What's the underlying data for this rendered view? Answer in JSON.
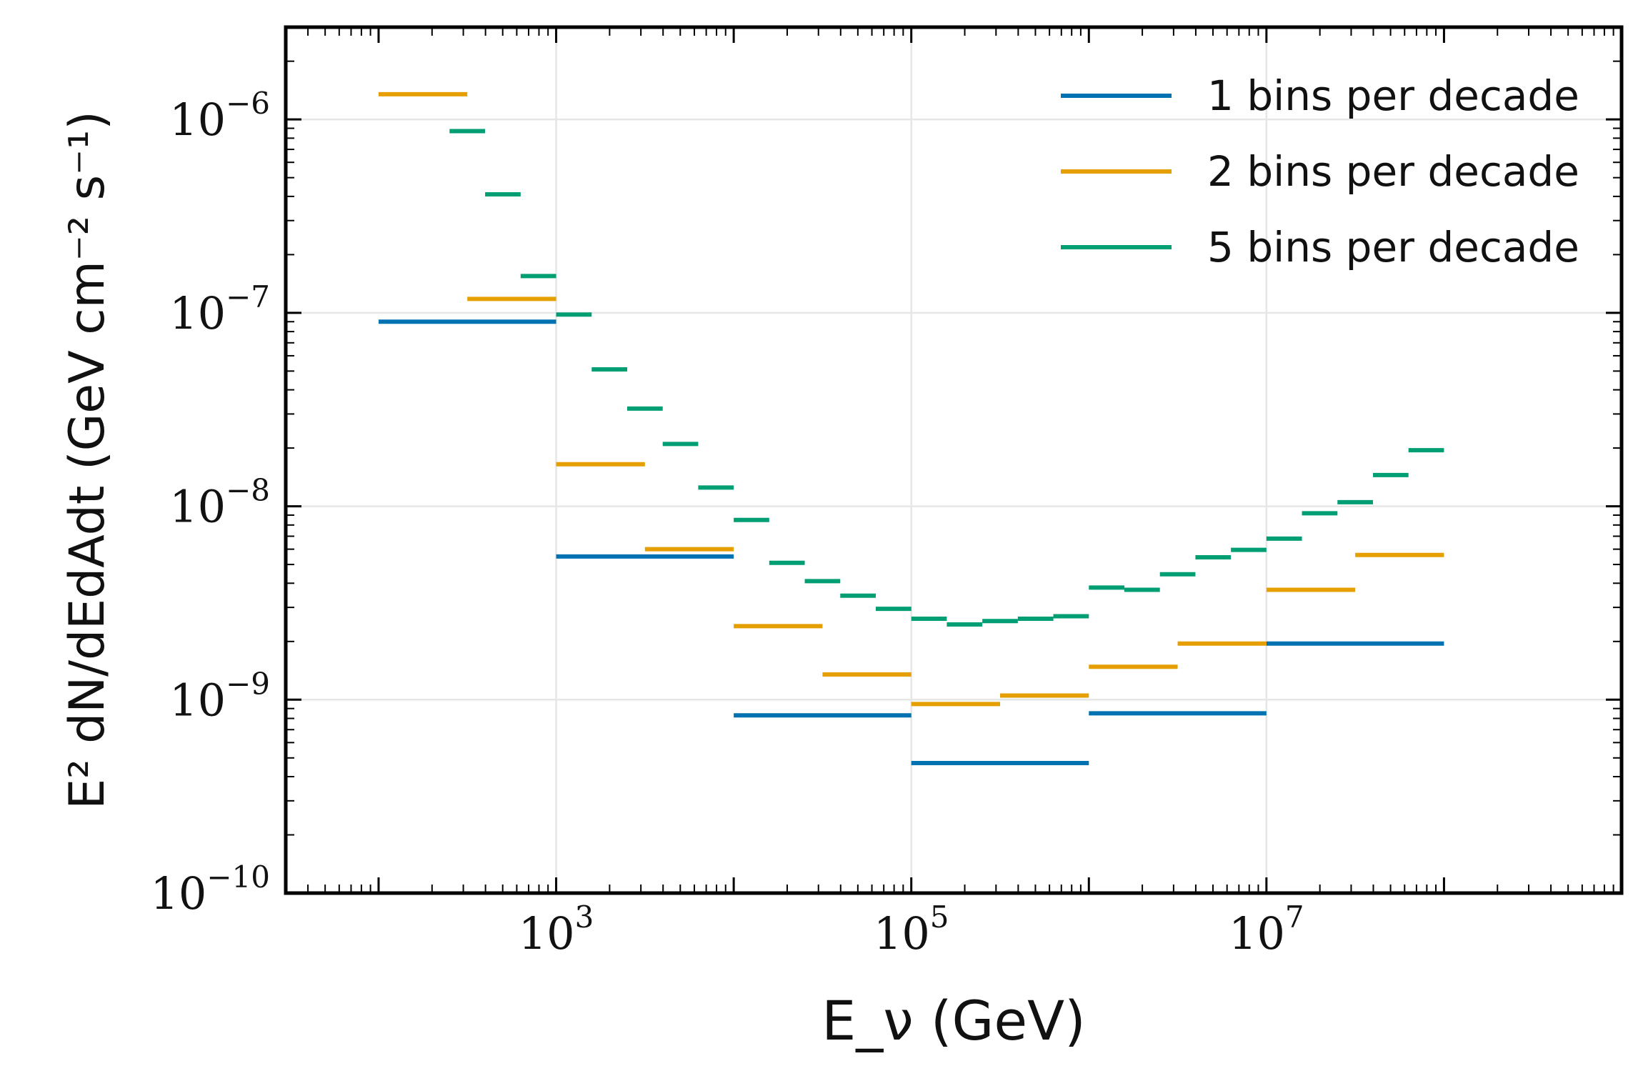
{
  "chart_data": {
    "type": "line",
    "title": "",
    "xlabel": "E_ν (GeV)",
    "ylabel": "E² dN/dEdAdt (GeV cm⁻² s⁻¹)",
    "x_scale": "log",
    "y_scale": "log",
    "xlim": [
      30,
      1000000000.0
    ],
    "ylim": [
      1e-10,
      3e-06
    ],
    "x_ticks": [
      {
        "base": "10",
        "exp": "3",
        "value": 1000
      },
      {
        "base": "10",
        "exp": "5",
        "value": 100000
      },
      {
        "base": "10",
        "exp": "7",
        "value": 10000000
      }
    ],
    "y_ticks": [
      {
        "base": "10",
        "exp": "−6",
        "value": 1e-06
      },
      {
        "base": "10",
        "exp": "−7",
        "value": 1e-07
      },
      {
        "base": "10",
        "exp": "−8",
        "value": 1e-08
      },
      {
        "base": "10",
        "exp": "−9",
        "value": 1e-09
      },
      {
        "base": "10",
        "exp": "−10",
        "value": 1e-10
      }
    ],
    "grid": true,
    "legend_position": "top-right",
    "series": [
      {
        "name": "1 bins per decade",
        "color": "#0072B2",
        "segments": [
          {
            "x0": 100,
            "x1": 1000,
            "y": 9e-08
          },
          {
            "x0": 1000,
            "x1": 10000,
            "y": 5.5e-09
          },
          {
            "x0": 10000,
            "x1": 100000,
            "y": 8.3e-10
          },
          {
            "x0": 100000,
            "x1": 1000000,
            "y": 4.7e-10
          },
          {
            "x0": 1000000,
            "x1": 10000000,
            "y": 8.5e-10
          },
          {
            "x0": 10000000,
            "x1": 100000000,
            "y": 1.95e-09
          }
        ]
      },
      {
        "name": "2 bins per decade",
        "color": "#E69F00",
        "segments": [
          {
            "x0": 100,
            "x1": 316,
            "y": 1.35e-06
          },
          {
            "x0": 316,
            "x1": 1000,
            "y": 1.18e-07
          },
          {
            "x0": 1000,
            "x1": 3162,
            "y": 1.65e-08
          },
          {
            "x0": 3162,
            "x1": 10000,
            "y": 6e-09
          },
          {
            "x0": 10000,
            "x1": 31623,
            "y": 2.4e-09
          },
          {
            "x0": 31623,
            "x1": 100000,
            "y": 1.35e-09
          },
          {
            "x0": 100000,
            "x1": 316228,
            "y": 9.5e-10
          },
          {
            "x0": 316228,
            "x1": 1000000,
            "y": 1.05e-09
          },
          {
            "x0": 1000000,
            "x1": 3162278,
            "y": 1.48e-09
          },
          {
            "x0": 3162278,
            "x1": 10000000,
            "y": 1.95e-09
          },
          {
            "x0": 10000000,
            "x1": 31622777,
            "y": 3.7e-09
          },
          {
            "x0": 31622777,
            "x1": 100000000,
            "y": 5.6e-09
          }
        ]
      },
      {
        "name": "5 bins per decade",
        "color": "#009E73",
        "segments": [
          {
            "x0": 251,
            "x1": 398,
            "y": 8.7e-07
          },
          {
            "x0": 398,
            "x1": 631,
            "y": 4.1e-07
          },
          {
            "x0": 631,
            "x1": 1000,
            "y": 1.55e-07
          },
          {
            "x0": 1000,
            "x1": 1585,
            "y": 9.8e-08
          },
          {
            "x0": 1585,
            "x1": 2512,
            "y": 5.1e-08
          },
          {
            "x0": 2512,
            "x1": 3981,
            "y": 3.2e-08
          },
          {
            "x0": 3981,
            "x1": 6310,
            "y": 2.1e-08
          },
          {
            "x0": 6310,
            "x1": 10000,
            "y": 1.25e-08
          },
          {
            "x0": 10000,
            "x1": 15849,
            "y": 8.5e-09
          },
          {
            "x0": 15849,
            "x1": 25119,
            "y": 5.1e-09
          },
          {
            "x0": 25119,
            "x1": 39811,
            "y": 4.1e-09
          },
          {
            "x0": 39811,
            "x1": 63096,
            "y": 3.45e-09
          },
          {
            "x0": 63096,
            "x1": 100000,
            "y": 2.95e-09
          },
          {
            "x0": 100000,
            "x1": 158489,
            "y": 2.62e-09
          },
          {
            "x0": 158489,
            "x1": 251189,
            "y": 2.45e-09
          },
          {
            "x0": 251189,
            "x1": 398107,
            "y": 2.55e-09
          },
          {
            "x0": 398107,
            "x1": 630957,
            "y": 2.62e-09
          },
          {
            "x0": 630957,
            "x1": 1000000,
            "y": 2.7e-09
          },
          {
            "x0": 1000000,
            "x1": 1584893,
            "y": 3.8e-09
          },
          {
            "x0": 1584893,
            "x1": 2511886,
            "y": 3.7e-09
          },
          {
            "x0": 2511886,
            "x1": 3981072,
            "y": 4.45e-09
          },
          {
            "x0": 3981072,
            "x1": 6309573,
            "y": 5.45e-09
          },
          {
            "x0": 6309573,
            "x1": 10000000,
            "y": 5.95e-09
          },
          {
            "x0": 10000000,
            "x1": 15848932,
            "y": 6.8e-09
          },
          {
            "x0": 15848932,
            "x1": 25118864,
            "y": 9.2e-09
          },
          {
            "x0": 25118864,
            "x1": 39810717,
            "y": 1.05e-08
          },
          {
            "x0": 39810717,
            "x1": 63095734,
            "y": 1.45e-08
          },
          {
            "x0": 63095734,
            "x1": 100000000,
            "y": 1.95e-08
          }
        ]
      }
    ]
  }
}
